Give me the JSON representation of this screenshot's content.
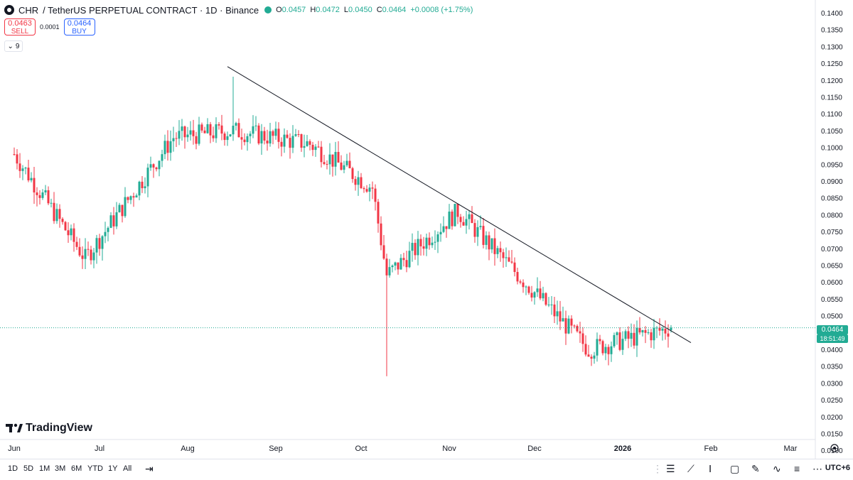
{
  "header": {
    "symbol": "CHR",
    "description": "/ TetherUS PERPETUAL CONTRACT · 1D · Binance",
    "ohlc": [
      {
        "key": "O",
        "value": "0.0457"
      },
      {
        "key": "H",
        "value": "0.0472"
      },
      {
        "key": "L",
        "value": "0.0450"
      },
      {
        "key": "C",
        "value": "0.0464"
      }
    ],
    "change": "+0.0008 (+1.75%)"
  },
  "trade": {
    "sell_price": "0.0463",
    "sell_label": "SELL",
    "spread": "0.0001",
    "buy_price": "0.0464",
    "buy_label": "BUY"
  },
  "indicators_count": "9",
  "price_axis": {
    "last_price": "0.0464",
    "countdown": "18:51:49",
    "ticks": [
      "0.1400",
      "0.1350",
      "0.1300",
      "0.1250",
      "0.1200",
      "0.1150",
      "0.1100",
      "0.1050",
      "0.1000",
      "0.0950",
      "0.0900",
      "0.0850",
      "0.0800",
      "0.0750",
      "0.0700",
      "0.0650",
      "0.0600",
      "0.0550",
      "0.0500",
      "0.0450",
      "0.0400",
      "0.0350",
      "0.0300",
      "0.0250",
      "0.0200",
      "0.0150",
      "0.0100"
    ]
  },
  "time_axis": {
    "labels": [
      {
        "label": "Jun",
        "bold": false
      },
      {
        "label": "Jul",
        "bold": false
      },
      {
        "label": "Aug",
        "bold": false
      },
      {
        "label": "Sep",
        "bold": false
      },
      {
        "label": "Oct",
        "bold": false
      },
      {
        "label": "Nov",
        "bold": false
      },
      {
        "label": "Dec",
        "bold": false
      },
      {
        "label": "2026",
        "bold": true
      },
      {
        "label": "Feb",
        "bold": false
      },
      {
        "label": "Mar",
        "bold": false
      }
    ]
  },
  "watermark": "TradingView",
  "ranges": [
    "1D",
    "5D",
    "1M",
    "3M",
    "6M",
    "YTD",
    "1Y",
    "All"
  ],
  "timezone": "UTC+6",
  "colors": {
    "up": "#22ab94",
    "down": "#f23645",
    "accent": "#2962ff",
    "trendline": "#131722"
  },
  "chart_data": {
    "type": "candlestick",
    "interval": "1D",
    "x_range": [
      "2025-06-01",
      "2026-03-01"
    ],
    "ylim": [
      0.01,
      0.14
    ],
    "last_price": 0.0464,
    "key_points": [
      {
        "date": "2025-06-01",
        "close": 0.098
      },
      {
        "date": "2025-06-26",
        "close": 0.067
      },
      {
        "date": "2025-07-27",
        "close": 0.103
      },
      {
        "date": "2025-08-17",
        "high": 0.121,
        "close": 0.105
      },
      {
        "date": "2025-09-13",
        "close": 0.101
      },
      {
        "date": "2025-10-05",
        "close": 0.088
      },
      {
        "date": "2025-10-10",
        "low": 0.032,
        "close": 0.062
      },
      {
        "date": "2025-11-04",
        "high": 0.083,
        "close": 0.081
      },
      {
        "date": "2025-12-20",
        "low": 0.038,
        "close": 0.04
      },
      {
        "date": "2026-01-18",
        "close": 0.0464
      }
    ],
    "trendline": [
      {
        "date": "2025-08-15",
        "price": 0.124
      },
      {
        "date": "2026-01-20",
        "price": 0.042
      }
    ]
  }
}
